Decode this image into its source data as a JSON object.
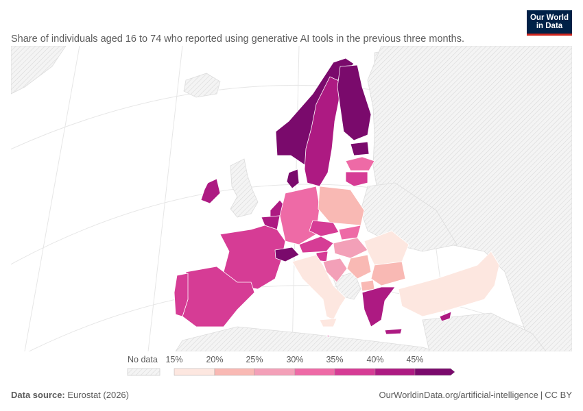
{
  "subtitle": "Share of individuals aged 16 to 74 who reported using generative AI tools in the previous three months.",
  "logo": {
    "line1": "Our World",
    "line2": "in Data"
  },
  "map_data": {
    "type": "choropleth",
    "region": "Europe",
    "no_data_color": "#f2f2f2",
    "colors": {
      "b15_20": "#fde7e0",
      "b20_25": "#f9b9b4",
      "b25_30": "#f3a0b8",
      "b30_35": "#ee6aa6",
      "b35_40": "#d63c95",
      "b40_45": "#ad1a82",
      "b45_plus": "#7a0a6c"
    },
    "countries": [
      {
        "name": "Norway",
        "bin": "b45_plus"
      },
      {
        "name": "Sweden",
        "bin": "b40_45"
      },
      {
        "name": "Finland",
        "bin": "b45_plus"
      },
      {
        "name": "Denmark",
        "bin": "b45_plus"
      },
      {
        "name": "Estonia",
        "bin": "b45_plus"
      },
      {
        "name": "Latvia",
        "bin": "b30_35"
      },
      {
        "name": "Lithuania",
        "bin": "b35_40"
      },
      {
        "name": "Ireland",
        "bin": "b40_45"
      },
      {
        "name": "Netherlands",
        "bin": "b40_45"
      },
      {
        "name": "Belgium",
        "bin": "b40_45"
      },
      {
        "name": "Luxembourg",
        "bin": "b40_45"
      },
      {
        "name": "France",
        "bin": "b35_40"
      },
      {
        "name": "Germany",
        "bin": "b30_35"
      },
      {
        "name": "Poland",
        "bin": "b20_25"
      },
      {
        "name": "Czechia",
        "bin": "b35_40"
      },
      {
        "name": "Slovakia",
        "bin": "b30_35"
      },
      {
        "name": "Austria",
        "bin": "b35_40"
      },
      {
        "name": "Switzerland",
        "bin": "b45_plus"
      },
      {
        "name": "Hungary",
        "bin": "b25_30"
      },
      {
        "name": "Slovenia",
        "bin": "b35_40"
      },
      {
        "name": "Croatia",
        "bin": "b25_30"
      },
      {
        "name": "Serbia",
        "bin": "b20_25"
      },
      {
        "name": "Romania",
        "bin": "b15_20"
      },
      {
        "name": "Bulgaria",
        "bin": "b20_25"
      },
      {
        "name": "North Macedonia",
        "bin": "b20_25"
      },
      {
        "name": "Albania",
        "bin": "b15_20"
      },
      {
        "name": "Greece",
        "bin": "b40_45"
      },
      {
        "name": "Cyprus",
        "bin": "b40_45"
      },
      {
        "name": "Malta",
        "bin": "b35_40"
      },
      {
        "name": "Italy",
        "bin": "b15_20"
      },
      {
        "name": "Spain",
        "bin": "b35_40"
      },
      {
        "name": "Portugal",
        "bin": "b35_40"
      },
      {
        "name": "Turkey",
        "bin": "b15_20"
      },
      {
        "name": "Montenegro",
        "bin": "b15_20"
      },
      {
        "name": "Bosnia and Herzegovina",
        "bin": "b15_20"
      }
    ]
  },
  "legend": {
    "no_data_label": "No data",
    "ticks": [
      "15%",
      "20%",
      "25%",
      "30%",
      "35%",
      "40%",
      "45%"
    ]
  },
  "footer": {
    "source_label": "Data source:",
    "source_value": "Eurostat (2026)",
    "url": "OurWorldinData.org/artificial-intelligence",
    "separator": "|",
    "license": "CC BY"
  }
}
